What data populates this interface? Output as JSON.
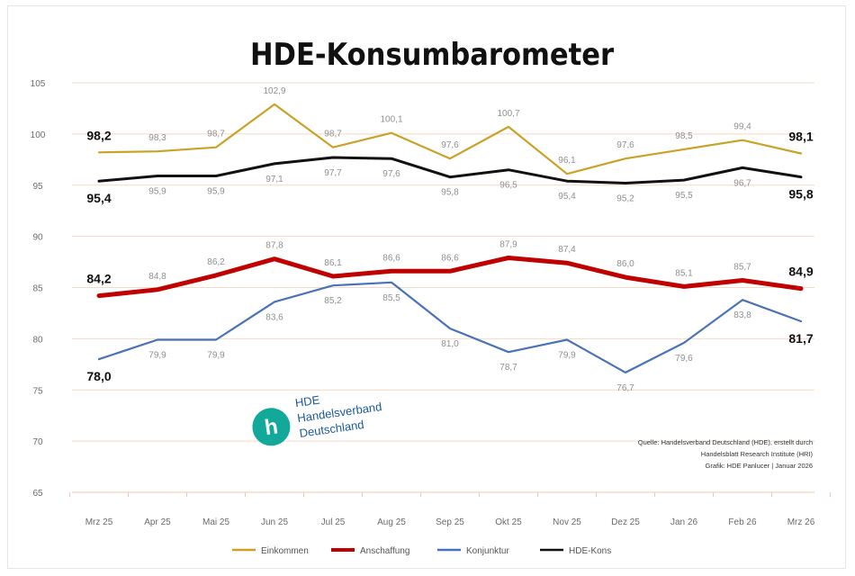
{
  "chart_data": {
    "type": "line",
    "title": "HDE-Konsumbarometer",
    "categories": [
      "Mrz 25",
      "Apr 25",
      "Mai 25",
      "Jun 25",
      "Jul 25",
      "Aug 25",
      "Sep 25",
      "Okt 25",
      "Nov 25",
      "Dez 25",
      "Jan 26",
      "Feb 26",
      "Mrz 26"
    ],
    "ylim": [
      65,
      105
    ],
    "yticks": [
      65,
      70,
      75,
      80,
      85,
      90,
      95,
      100,
      105
    ],
    "grid": true,
    "legend_position": "bottom",
    "series": [
      {
        "name": "Einkommen",
        "color": "#c9a227",
        "values": [
          98.2,
          98.3,
          98.7,
          102.9,
          98.7,
          100.1,
          97.6,
          100.7,
          96.1,
          97.6,
          98.5,
          99.4,
          98.1
        ],
        "labels": [
          "98,2",
          "98,3",
          "98,7",
          "102,9",
          "98,7",
          "100,1",
          "97,6",
          "100,7",
          "96,1",
          "97,6",
          "98,5",
          "99,4",
          "98,1"
        ]
      },
      {
        "name": "Anschaffung",
        "color": "#c00000",
        "values": [
          84.2,
          84.8,
          86.2,
          87.8,
          86.1,
          86.6,
          86.6,
          87.9,
          87.4,
          86.0,
          85.1,
          85.7,
          84.9
        ],
        "labels": [
          "84,2",
          "84,8",
          "86,2",
          "87,8",
          "86,1",
          "86,6",
          "86,6",
          "87,9",
          "87,4",
          "86,0",
          "85,1",
          "85,7",
          "84,9"
        ]
      },
      {
        "name": "Konjunktur",
        "color": "#4a72b8",
        "values": [
          78.0,
          79.9,
          79.9,
          83.6,
          85.2,
          85.5,
          81.0,
          78.7,
          79.9,
          76.7,
          79.6,
          83.8,
          81.7
        ],
        "labels": [
          "78,0",
          "79,9",
          "79,9",
          "83,6",
          "85,2",
          "85,5",
          "81,0",
          "78,7",
          "79,9",
          "76,7",
          "79,6",
          "83,8",
          "81,7"
        ]
      },
      {
        "name": "HDE-Kons",
        "color": "#111111",
        "values": [
          95.4,
          95.9,
          95.9,
          97.1,
          97.7,
          97.6,
          95.8,
          96.5,
          95.4,
          95.2,
          95.5,
          96.7,
          95.8
        ],
        "labels": [
          "95,4",
          "95,9",
          "95,9",
          "97,1",
          "97,7",
          "97,6",
          "95,8",
          "96,5",
          "95,4",
          "95,2",
          "95,5",
          "96,7",
          "95,8"
        ]
      }
    ],
    "source_lines": [
      "Quelle: Handelsverband Deutschland (HDE), erstellt durch",
      "Handelsblatt Research Institute (HRI)",
      "Grafik: HDE Panlucer | Januar 2026"
    ],
    "logo": {
      "mark": "h",
      "lines": [
        "HDE",
        "Handelsverband",
        "Deutschland"
      ]
    }
  }
}
